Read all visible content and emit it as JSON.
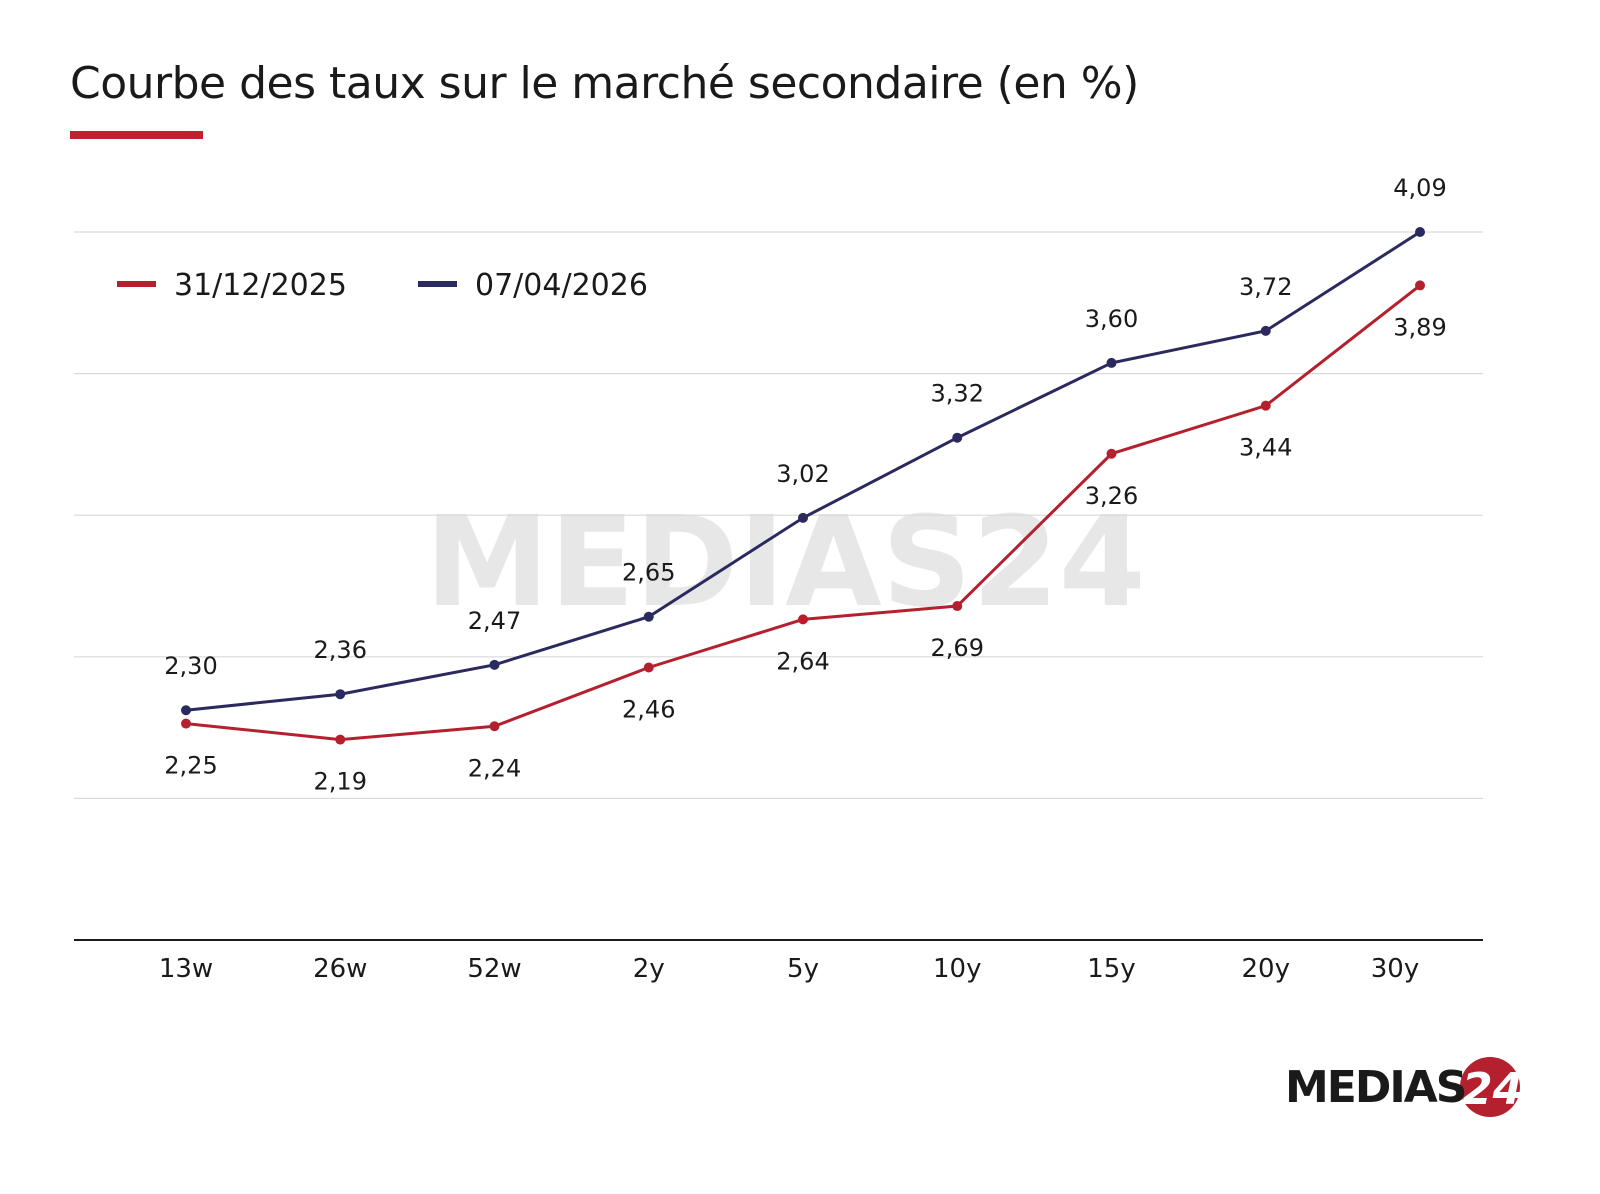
{
  "title": "Courbe des taux sur le marché secondaire (en %)",
  "logo": {
    "text": "MEDIAS24",
    "colors": {
      "text": "#1a1a1a",
      "badge": "#b5202e"
    }
  },
  "watermark": "MEDIAS24",
  "chart_data": {
    "type": "line",
    "title": "Courbe des taux sur le marché secondaire (en %)",
    "categories": [
      "13w",
      "26w",
      "52w",
      "2y",
      "5y",
      "10y",
      "15y",
      "20y",
      "30y"
    ],
    "series": [
      {
        "name": "31/12/2025",
        "color": "#b5202e",
        "values": [
          2.25,
          2.19,
          2.24,
          2.46,
          2.64,
          2.69,
          3.26,
          3.44,
          3.89
        ],
        "labels": [
          "2,25",
          "2,19",
          "2,24",
          "2,46",
          "2,64",
          "2,69",
          "3,26",
          "3,44",
          "3,89"
        ]
      },
      {
        "name": "07/04/2026",
        "color": "#2b2a5e",
        "values": [
          2.3,
          2.36,
          2.47,
          2.65,
          3.02,
          3.32,
          3.6,
          3.72,
          4.09
        ],
        "labels": [
          "2,30",
          "2,36",
          "2,47",
          "2,65",
          "3,02",
          "3,32",
          "3,60",
          "3,72",
          "4,09"
        ]
      }
    ],
    "ylim": [
      1.44,
      4.09
    ],
    "y_ticks_shown": false,
    "grid": true,
    "legend": "top-left",
    "xlabel": "",
    "ylabel": ""
  }
}
